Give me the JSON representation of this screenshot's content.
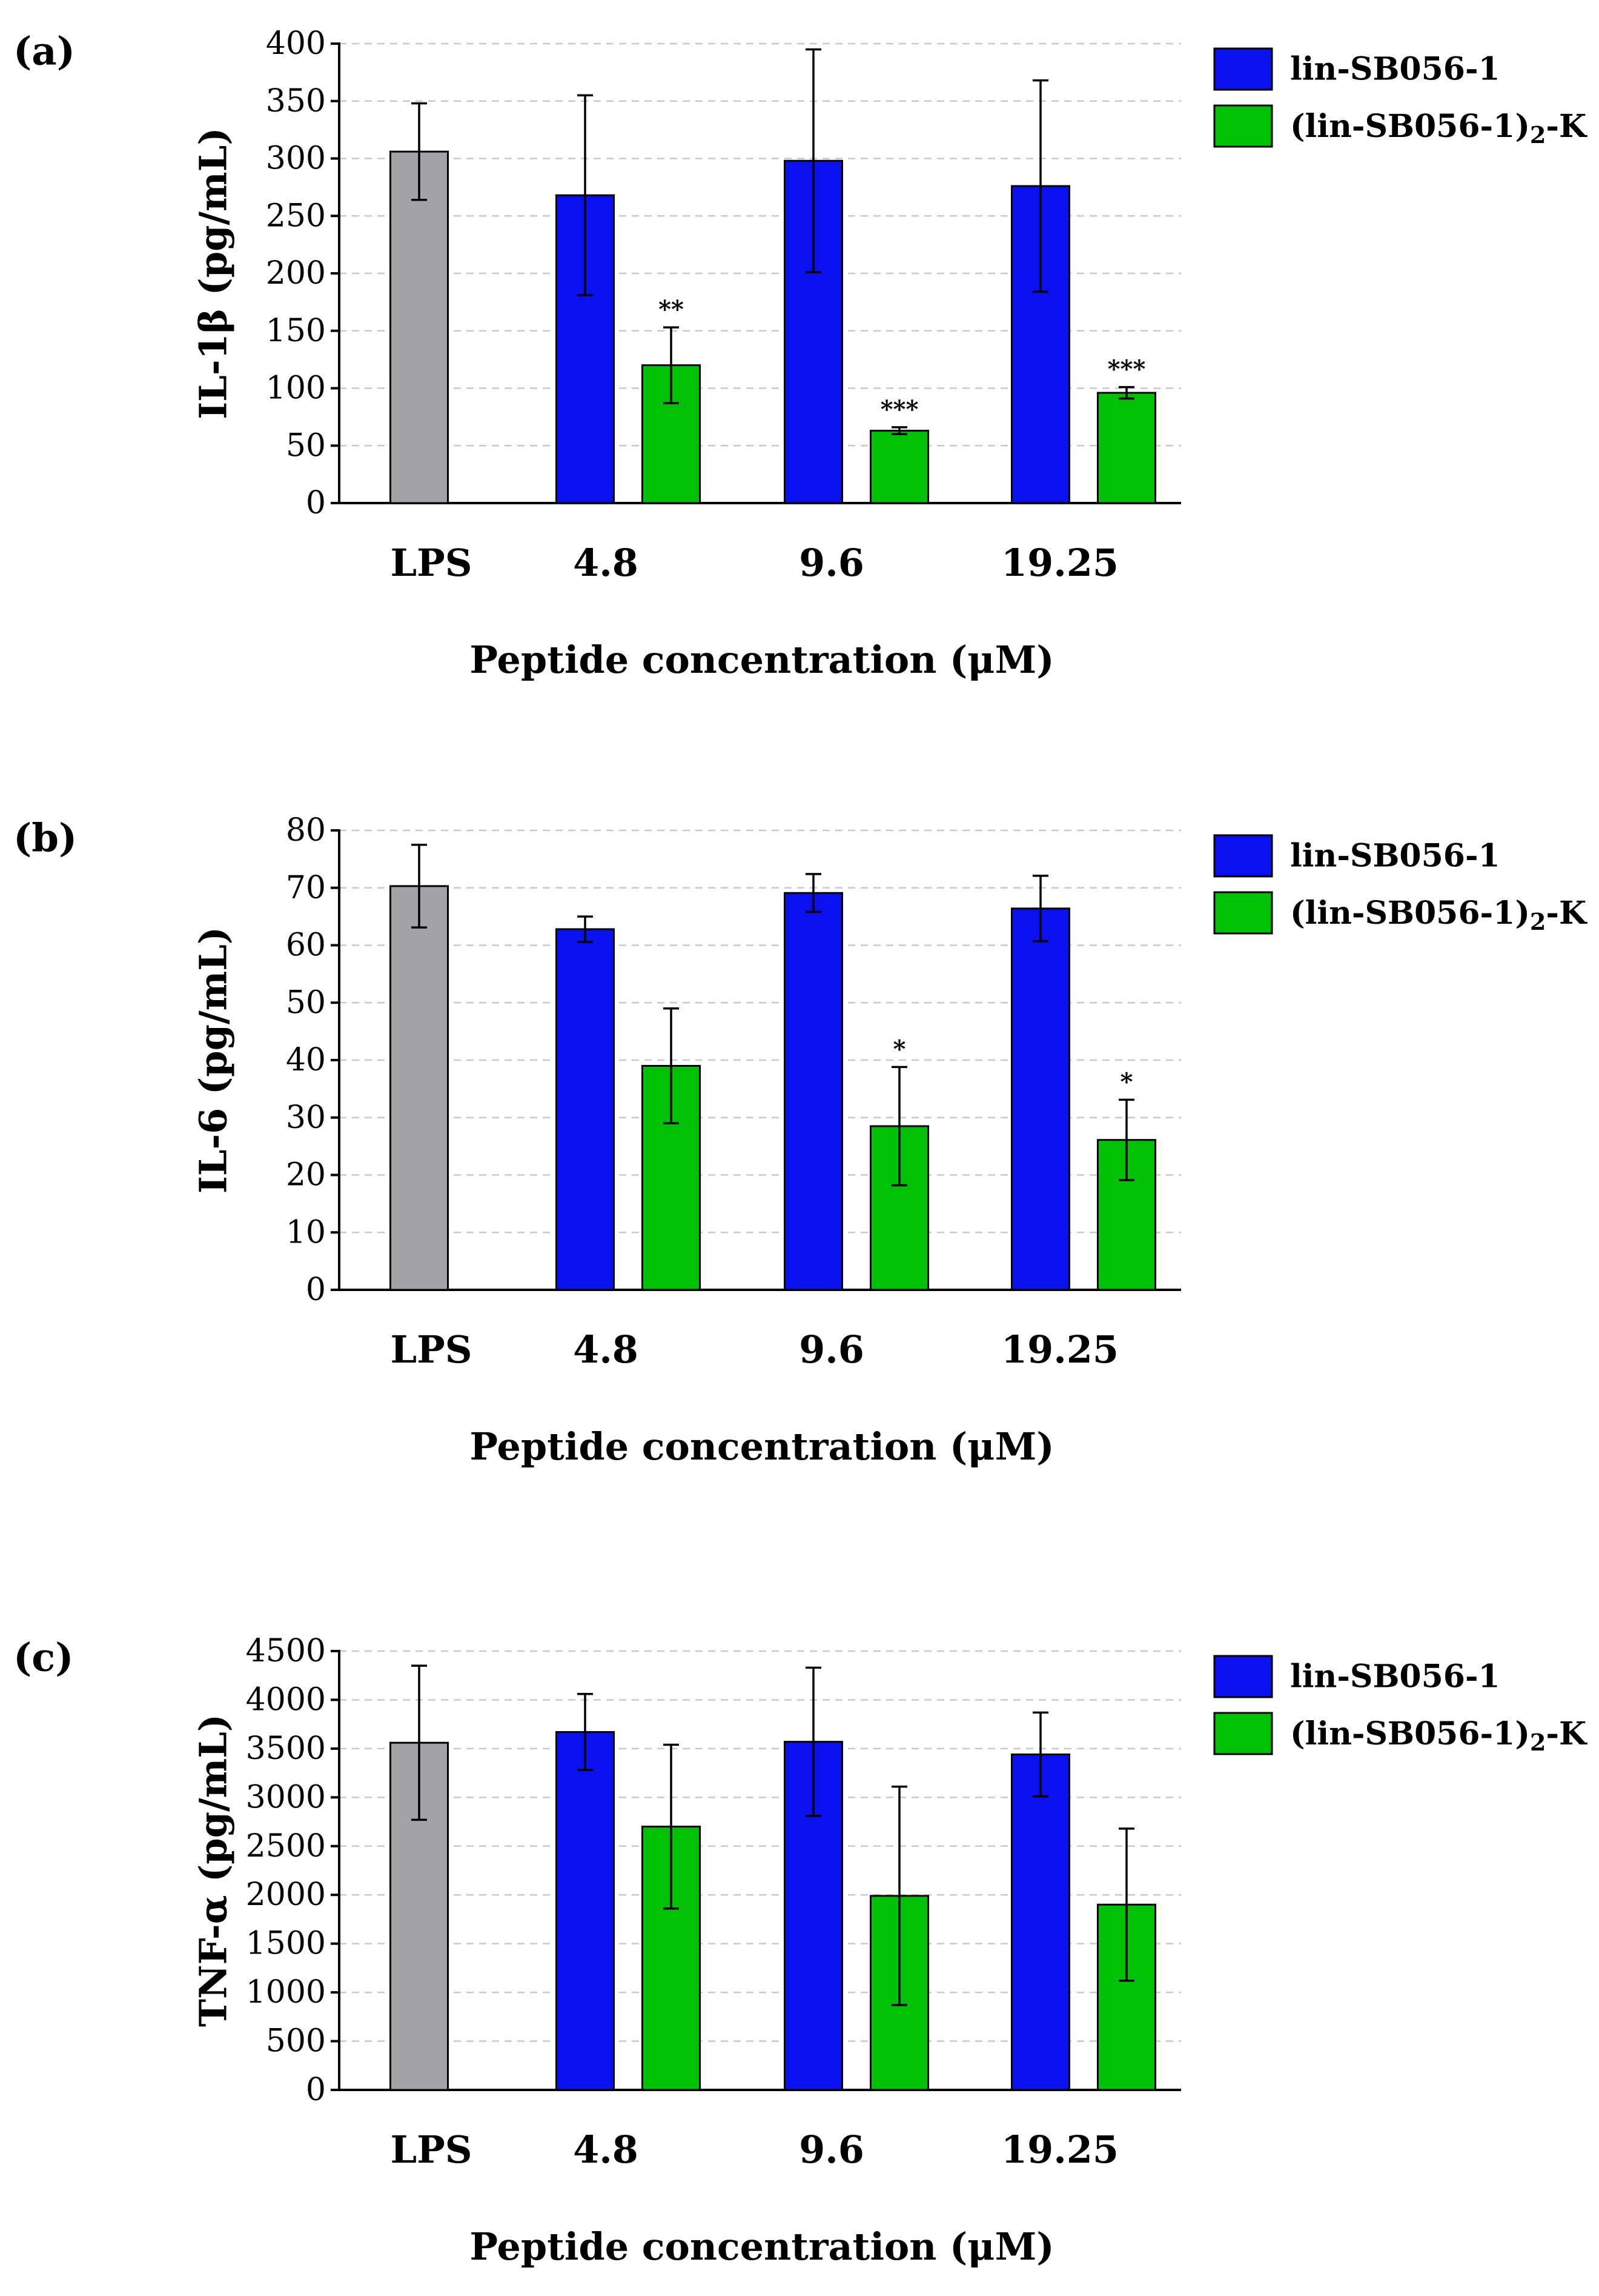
{
  "figure": {
    "colors": {
      "lps": "#a3a3a6",
      "lin": "#0a10ee",
      "dimer": "#00c106",
      "grid": "#c9c9c9"
    }
  },
  "chart_data": [
    {
      "type": "bar",
      "panel_label": "(a)",
      "ylabel": "IL-1β (pg/mL)",
      "xlabel": "Peptide concentration (μM)",
      "ylim": [
        0,
        400
      ],
      "yticks": [
        0,
        50,
        100,
        150,
        200,
        250,
        300,
        350,
        400
      ],
      "grid": true,
      "categories": [
        "LPS",
        "4.8",
        "9.6",
        "19.25"
      ],
      "legend": [
        {
          "name": "lin-SB056-1",
          "color": "#0a10ee"
        },
        {
          "name_main": "(lin-SB056-1)",
          "name_sub": "2",
          "name_tail": "-K",
          "color": "#00c106"
        }
      ],
      "bars": [
        {
          "category": "LPS",
          "series": "LPS",
          "value": 306,
          "error": 42,
          "sig": ""
        },
        {
          "category": "4.8",
          "series": "lin-SB056-1",
          "value": 268,
          "error": 87,
          "sig": ""
        },
        {
          "category": "4.8",
          "series": "(lin-SB056-1)2-K",
          "value": 120,
          "error": 33,
          "sig": "**"
        },
        {
          "category": "9.6",
          "series": "lin-SB056-1",
          "value": 298,
          "error": 97,
          "sig": ""
        },
        {
          "category": "9.6",
          "series": "(lin-SB056-1)2-K",
          "value": 63,
          "error": 3,
          "sig": "***"
        },
        {
          "category": "19.25",
          "series": "lin-SB056-1",
          "value": 276,
          "error": 92,
          "sig": ""
        },
        {
          "category": "19.25",
          "series": "(lin-SB056-1)2-K",
          "value": 96,
          "error": 5,
          "sig": "***"
        }
      ]
    },
    {
      "type": "bar",
      "panel_label": "(b)",
      "ylabel": "IL-6 (pg/mL)",
      "xlabel": "Peptide concentration (μM)",
      "ylim": [
        0,
        80
      ],
      "yticks": [
        0,
        10,
        20,
        30,
        40,
        50,
        60,
        70,
        80
      ],
      "grid": true,
      "categories": [
        "LPS",
        "4.8",
        "9.6",
        "19.25"
      ],
      "legend": [
        {
          "name": "lin-SB056-1",
          "color": "#0a10ee"
        },
        {
          "name_main": "(lin-SB056-1)",
          "name_sub": "2",
          "name_tail": "-K",
          "color": "#00c106"
        }
      ],
      "bars": [
        {
          "category": "LPS",
          "series": "LPS",
          "value": 70.3,
          "error": 7.2,
          "sig": ""
        },
        {
          "category": "4.8",
          "series": "lin-SB056-1",
          "value": 62.8,
          "error": 2.2,
          "sig": ""
        },
        {
          "category": "4.8",
          "series": "(lin-SB056-1)2-K",
          "value": 39,
          "error": 10,
          "sig": ""
        },
        {
          "category": "9.6",
          "series": "lin-SB056-1",
          "value": 69.1,
          "error": 3.3,
          "sig": ""
        },
        {
          "category": "9.6",
          "series": "(lin-SB056-1)2-K",
          "value": 28.5,
          "error": 10.3,
          "sig": "*"
        },
        {
          "category": "19.25",
          "series": "lin-SB056-1",
          "value": 66.4,
          "error": 5.7,
          "sig": ""
        },
        {
          "category": "19.25",
          "series": "(lin-SB056-1)2-K",
          "value": 26.1,
          "error": 7,
          "sig": "*"
        }
      ]
    },
    {
      "type": "bar",
      "panel_label": "(c)",
      "ylabel": "TNF-α (pg/mL)",
      "xlabel": "Peptide concentration (μM)",
      "ylim": [
        0,
        4500
      ],
      "yticks": [
        0,
        500,
        1000,
        1500,
        2000,
        2500,
        3000,
        3500,
        4000,
        4500
      ],
      "grid": true,
      "categories": [
        "LPS",
        "4.8",
        "9.6",
        "19.25"
      ],
      "legend": [
        {
          "name": "lin-SB056-1",
          "color": "#0a10ee"
        },
        {
          "name_main": "(lin-SB056-1)",
          "name_sub": "2",
          "name_tail": "-K",
          "color": "#00c106"
        }
      ],
      "bars": [
        {
          "category": "LPS",
          "series": "LPS",
          "value": 3560,
          "error": 790,
          "sig": ""
        },
        {
          "category": "4.8",
          "series": "lin-SB056-1",
          "value": 3670,
          "error": 390,
          "sig": ""
        },
        {
          "category": "4.8",
          "series": "(lin-SB056-1)2-K",
          "value": 2700,
          "error": 840,
          "sig": ""
        },
        {
          "category": "9.6",
          "series": "lin-SB056-1",
          "value": 3570,
          "error": 760,
          "sig": ""
        },
        {
          "category": "9.6",
          "series": "(lin-SB056-1)2-K",
          "value": 1990,
          "error": 1120,
          "sig": ""
        },
        {
          "category": "19.25",
          "series": "lin-SB056-1",
          "value": 3440,
          "error": 430,
          "sig": ""
        },
        {
          "category": "19.25",
          "series": "(lin-SB056-1)2-K",
          "value": 1900,
          "error": 780,
          "sig": ""
        }
      ]
    }
  ]
}
